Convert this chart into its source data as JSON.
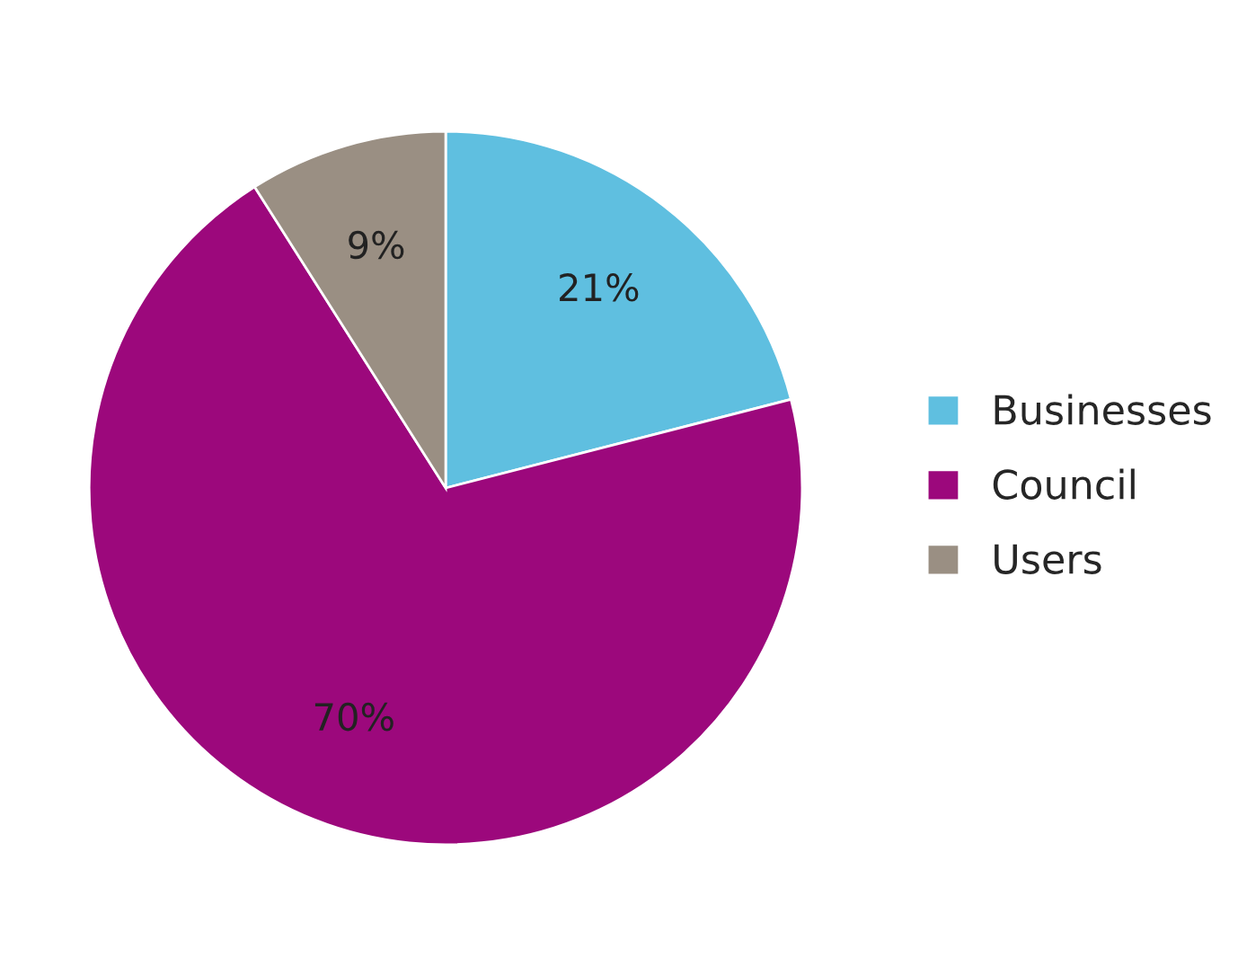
{
  "chart_data": {
    "type": "pie",
    "categories": [
      "Businesses",
      "Council",
      "Users"
    ],
    "values": [
      21,
      70,
      9
    ],
    "colors": [
      "#5fbfe0",
      "#9c087c",
      "#9a8f83"
    ],
    "value_labels": [
      "21%",
      "70%",
      "9%"
    ],
    "legend": "right"
  }
}
